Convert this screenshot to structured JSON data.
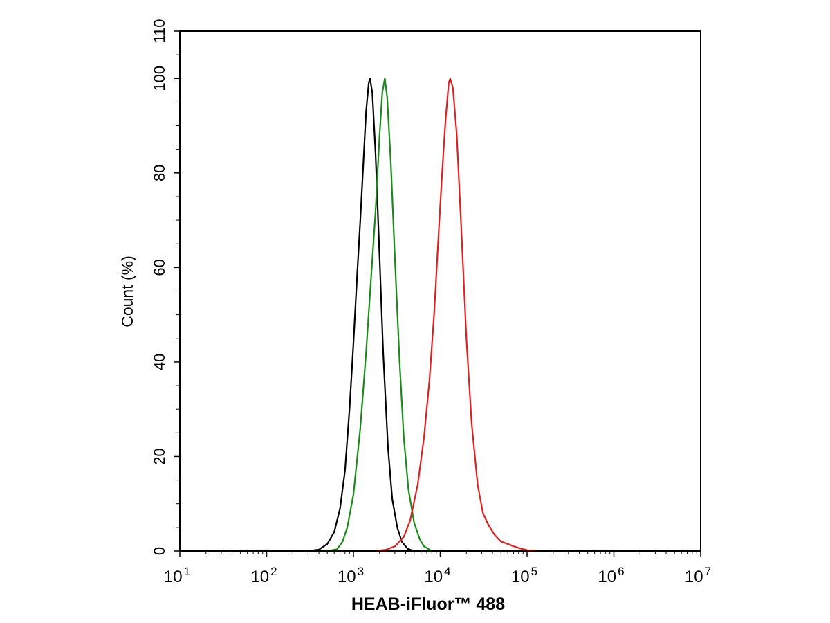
{
  "chart_data": {
    "type": "line",
    "title": "",
    "xlabel": "HEAB-iFluor™ 488",
    "ylabel": "Count  (%)",
    "xscale": "log",
    "xlim": [
      10,
      10000000
    ],
    "ylim": [
      0,
      110
    ],
    "x_ticks": [
      {
        "base": "10",
        "exp": "1",
        "value": 10
      },
      {
        "base": "10",
        "exp": "2",
        "value": 100
      },
      {
        "base": "10",
        "exp": "3",
        "value": 1000
      },
      {
        "base": "10",
        "exp": "4",
        "value": 10000
      },
      {
        "base": "10",
        "exp": "5",
        "value": 100000
      },
      {
        "base": "10",
        "exp": "6",
        "value": 1000000
      },
      {
        "base": "10",
        "exp": "7",
        "value": 10000000
      }
    ],
    "y_ticks": [
      0,
      20,
      40,
      60,
      80,
      100,
      110
    ],
    "grid": false,
    "legend": "none",
    "series": [
      {
        "color": "#000000",
        "points": [
          [
            300,
            0
          ],
          [
            400,
            0.3
          ],
          [
            500,
            1.5
          ],
          [
            600,
            4
          ],
          [
            700,
            9
          ],
          [
            800,
            17
          ],
          [
            900,
            30
          ],
          [
            1000,
            44
          ],
          [
            1100,
            58
          ],
          [
            1200,
            70
          ],
          [
            1300,
            82
          ],
          [
            1400,
            93
          ],
          [
            1500,
            99
          ],
          [
            1550,
            100
          ],
          [
            1650,
            97
          ],
          [
            1800,
            84
          ],
          [
            2000,
            62
          ],
          [
            2200,
            42
          ],
          [
            2500,
            22
          ],
          [
            2800,
            11
          ],
          [
            3200,
            5
          ],
          [
            3600,
            2
          ],
          [
            4200,
            0.5
          ],
          [
            5000,
            0
          ]
        ]
      },
      {
        "color": "#1a8a1a",
        "points": [
          [
            500,
            0
          ],
          [
            650,
            0.4
          ],
          [
            750,
            2
          ],
          [
            850,
            5
          ],
          [
            1000,
            12
          ],
          [
            1200,
            26
          ],
          [
            1400,
            42
          ],
          [
            1600,
            58
          ],
          [
            1800,
            72
          ],
          [
            2000,
            88
          ],
          [
            2150,
            97
          ],
          [
            2300,
            100
          ],
          [
            2450,
            96
          ],
          [
            2700,
            82
          ],
          [
            3000,
            62
          ],
          [
            3400,
            40
          ],
          [
            3800,
            24
          ],
          [
            4300,
            13
          ],
          [
            5000,
            6
          ],
          [
            5800,
            2.5
          ],
          [
            6500,
            1
          ],
          [
            8000,
            0
          ]
        ]
      },
      {
        "color": "#e02020",
        "points": [
          [
            1800,
            0
          ],
          [
            2400,
            0.3
          ],
          [
            3000,
            1
          ],
          [
            3800,
            3
          ],
          [
            4500,
            6.5
          ],
          [
            5500,
            14
          ],
          [
            6500,
            24
          ],
          [
            7500,
            36
          ],
          [
            8500,
            50
          ],
          [
            9500,
            66
          ],
          [
            10500,
            80
          ],
          [
            11500,
            91
          ],
          [
            12500,
            99
          ],
          [
            13000,
            100
          ],
          [
            14000,
            98
          ],
          [
            15500,
            88
          ],
          [
            17500,
            68
          ],
          [
            20000,
            45
          ],
          [
            23000,
            27
          ],
          [
            27000,
            14
          ],
          [
            31000,
            8
          ],
          [
            36000,
            5.5
          ],
          [
            42000,
            3.5
          ],
          [
            50000,
            2
          ],
          [
            60000,
            1.5
          ],
          [
            70000,
            1
          ],
          [
            85000,
            0.5
          ],
          [
            100000,
            0.2
          ],
          [
            130000,
            0
          ]
        ]
      }
    ]
  }
}
